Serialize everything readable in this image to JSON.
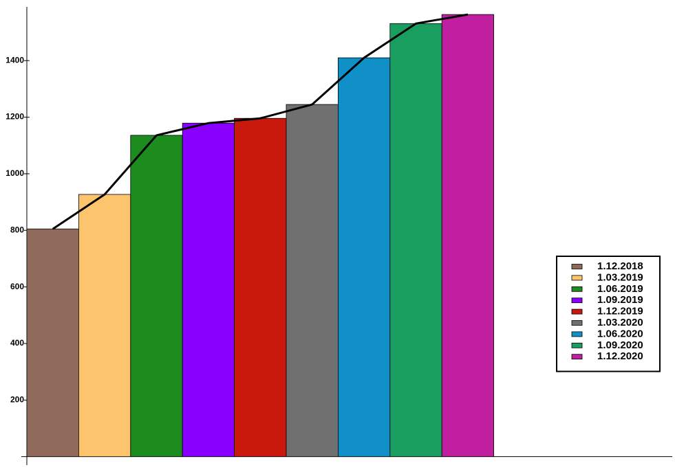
{
  "chart_data": {
    "type": "bar",
    "series": [
      {
        "name": "1.12.2018",
        "color": "#8f6a5a",
        "values": [
          805
        ]
      },
      {
        "name": "1.03.2019",
        "color": "#fdc46e",
        "values": [
          927
        ]
      },
      {
        "name": "1.06.2019",
        "color": "#1c8c1f",
        "values": [
          1136
        ]
      },
      {
        "name": "1.09.2019",
        "color": "#8a00ff",
        "values": [
          1179
        ]
      },
      {
        "name": "1.12.2019",
        "color": "#c8190c",
        "values": [
          1196
        ]
      },
      {
        "name": "1.03.2020",
        "color": "#707070",
        "values": [
          1245
        ]
      },
      {
        "name": "1.06.2020",
        "color": "#1190c8",
        "values": [
          1410
        ]
      },
      {
        "name": "1.09.2020",
        "color": "#1a9e60",
        "values": [
          1531
        ]
      },
      {
        "name": "1.12.2020",
        "color": "#c020a0",
        "values": [
          1563
        ]
      }
    ],
    "line_color": "#000000",
    "ylim": [
      -30,
      1590
    ],
    "yticks": [
      200,
      400,
      600,
      800,
      1000,
      1200,
      1400
    ],
    "legend": "right"
  }
}
